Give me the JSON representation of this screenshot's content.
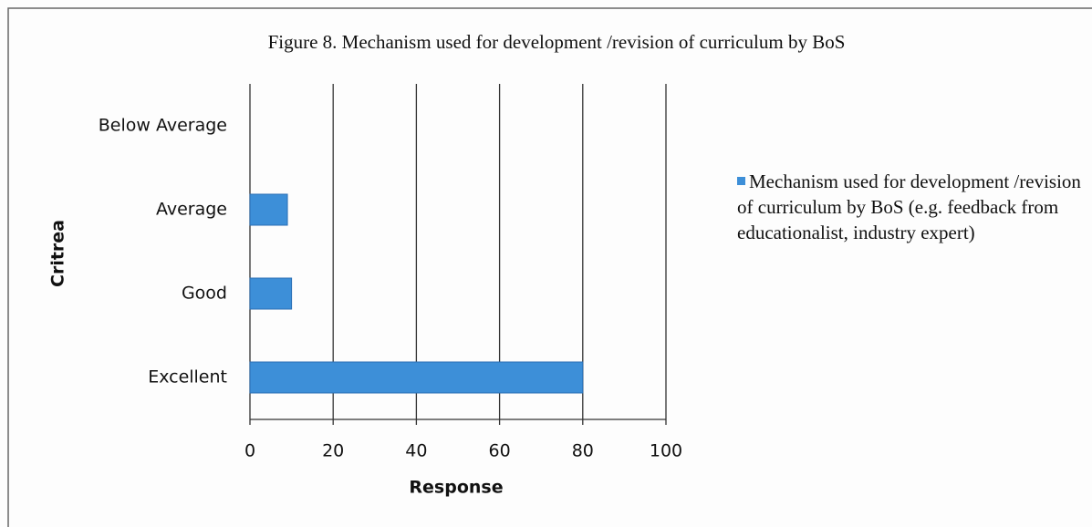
{
  "chart_data": {
    "type": "hbar",
    "title": "Figure 8. Mechanism used for development /revision of curriculum by BoS",
    "categories": [
      "Below Average",
      "Average",
      "Good",
      "Excellent"
    ],
    "series": [
      {
        "name": "Mechanism used for development /revision of curriculum by BoS (e.g. feedback from educationalist, industry expert)",
        "color": "#3d8fd8",
        "values": [
          0,
          9,
          10,
          80
        ]
      }
    ],
    "x_label": "Response",
    "y_label": "Critrea",
    "xlim": [
      0,
      100
    ],
    "xticks": [
      0,
      20,
      40,
      60,
      80,
      100
    ],
    "grid": true,
    "legend": "right"
  }
}
